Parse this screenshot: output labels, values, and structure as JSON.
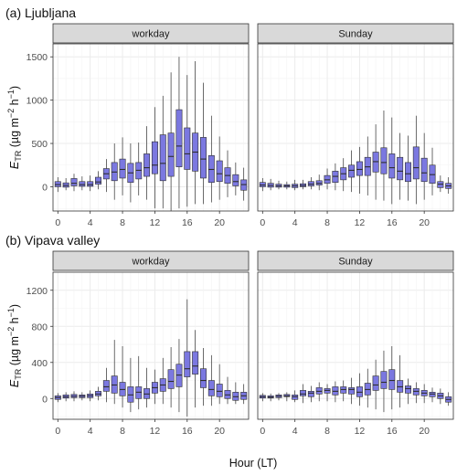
{
  "chart_data": {
    "type": "boxplot",
    "shared": {
      "xlabel": "Hour (LT)",
      "x_ticks": [
        0,
        4,
        8,
        12,
        16,
        20
      ],
      "hours": [
        0,
        1,
        2,
        3,
        4,
        5,
        6,
        7,
        8,
        9,
        10,
        11,
        12,
        13,
        14,
        15,
        16,
        17,
        18,
        19,
        20,
        21,
        22,
        23
      ],
      "box_fill": "#7b78e0",
      "box_stroke": "#2e2e2e",
      "strip_fill": "#d9d9d9",
      "grid_color": "#ebebeb"
    },
    "panels": [
      {
        "title": "(a) Ljubljana",
        "ylabel": {
          "pre": "E",
          "sub": "TR",
          "mid": " (µg m",
          "sup1": "−2",
          "mid2": " h",
          "sup2": "−1",
          "post": ")"
        },
        "ylim": [
          -280,
          1650
        ],
        "y_ticks": [
          0,
          500,
          1000,
          1500
        ],
        "facets": [
          {
            "strip": "workday",
            "boxes": [
              {
                "lo": -60,
                "q1": 0,
                "med": 25,
                "q3": 60,
                "hi": 110
              },
              {
                "lo": -40,
                "q1": -5,
                "med": 15,
                "q3": 45,
                "hi": 100
              },
              {
                "lo": -50,
                "q1": 10,
                "med": 40,
                "q3": 95,
                "hi": 150
              },
              {
                "lo": -40,
                "q1": 5,
                "med": 25,
                "q3": 60,
                "hi": 120
              },
              {
                "lo": -50,
                "q1": 5,
                "med": 25,
                "q3": 60,
                "hi": 130
              },
              {
                "lo": -30,
                "q1": 30,
                "med": 55,
                "q3": 110,
                "hi": 180
              },
              {
                "lo": -60,
                "q1": 90,
                "med": 150,
                "q3": 210,
                "hi": 320
              },
              {
                "lo": -150,
                "q1": 70,
                "med": 170,
                "q3": 280,
                "hi": 500
              },
              {
                "lo": -100,
                "q1": 100,
                "med": 200,
                "q3": 320,
                "hi": 570
              },
              {
                "lo": -180,
                "q1": 50,
                "med": 160,
                "q3": 270,
                "hi": 500
              },
              {
                "lo": -100,
                "q1": 90,
                "med": 190,
                "q3": 280,
                "hi": 510
              },
              {
                "lo": -150,
                "q1": 120,
                "med": 220,
                "q3": 380,
                "hi": 700
              },
              {
                "lo": -250,
                "q1": 150,
                "med": 250,
                "q3": 520,
                "hi": 920
              },
              {
                "lo": -250,
                "q1": 70,
                "med": 270,
                "q3": 600,
                "hi": 1050
              },
              {
                "lo": -280,
                "q1": 120,
                "med": 350,
                "q3": 620,
                "hi": 1320
              },
              {
                "lo": -250,
                "q1": 230,
                "med": 470,
                "q3": 890,
                "hi": 1500
              },
              {
                "lo": -230,
                "q1": 200,
                "med": 380,
                "q3": 680,
                "hi": 1290
              },
              {
                "lo": -200,
                "q1": 180,
                "med": 400,
                "q3": 620,
                "hi": 1450
              },
              {
                "lo": -200,
                "q1": 100,
                "med": 320,
                "q3": 570,
                "hi": 1200
              },
              {
                "lo": -180,
                "q1": 50,
                "med": 200,
                "q3": 360,
                "hi": 820
              },
              {
                "lo": -150,
                "q1": 60,
                "med": 150,
                "q3": 300,
                "hi": 580
              },
              {
                "lo": -120,
                "q1": 40,
                "med": 130,
                "q3": 220,
                "hi": 420
              },
              {
                "lo": -100,
                "q1": 10,
                "med": 60,
                "q3": 140,
                "hi": 280
              },
              {
                "lo": -160,
                "q1": -40,
                "med": 25,
                "q3": 80,
                "hi": 220
              }
            ]
          },
          {
            "strip": "Sunday",
            "boxes": [
              {
                "lo": -50,
                "q1": 0,
                "med": 20,
                "q3": 50,
                "hi": 100
              },
              {
                "lo": -40,
                "q1": -5,
                "med": 15,
                "q3": 40,
                "hi": 90
              },
              {
                "lo": -30,
                "q1": -5,
                "med": 10,
                "q3": 30,
                "hi": 70
              },
              {
                "lo": -30,
                "q1": -5,
                "med": 10,
                "q3": 25,
                "hi": 60
              },
              {
                "lo": -40,
                "q1": -10,
                "med": 10,
                "q3": 30,
                "hi": 80
              },
              {
                "lo": -30,
                "q1": 0,
                "med": 15,
                "q3": 35,
                "hi": 80
              },
              {
                "lo": -30,
                "q1": 10,
                "med": 30,
                "q3": 60,
                "hi": 110
              },
              {
                "lo": -40,
                "q1": 20,
                "med": 40,
                "q3": 70,
                "hi": 140
              },
              {
                "lo": -30,
                "q1": 40,
                "med": 80,
                "q3": 130,
                "hi": 210
              },
              {
                "lo": -40,
                "q1": 50,
                "med": 120,
                "q3": 180,
                "hi": 270
              },
              {
                "lo": -50,
                "q1": 80,
                "med": 150,
                "q3": 220,
                "hi": 330
              },
              {
                "lo": -60,
                "q1": 110,
                "med": 190,
                "q3": 250,
                "hi": 420
              },
              {
                "lo": -80,
                "q1": 130,
                "med": 200,
                "q3": 290,
                "hi": 460
              },
              {
                "lo": -100,
                "q1": 130,
                "med": 230,
                "q3": 340,
                "hi": 580
              },
              {
                "lo": -150,
                "q1": 170,
                "med": 290,
                "q3": 400,
                "hi": 720
              },
              {
                "lo": -160,
                "q1": 150,
                "med": 280,
                "q3": 450,
                "hi": 880
              },
              {
                "lo": -200,
                "q1": 100,
                "med": 220,
                "q3": 380,
                "hi": 800
              },
              {
                "lo": -150,
                "q1": 80,
                "med": 180,
                "q3": 340,
                "hi": 620
              },
              {
                "lo": -160,
                "q1": 60,
                "med": 150,
                "q3": 280,
                "hi": 590
              },
              {
                "lo": -200,
                "q1": 90,
                "med": 220,
                "q3": 460,
                "hi": 820
              },
              {
                "lo": -150,
                "q1": 60,
                "med": 160,
                "q3": 330,
                "hi": 620
              },
              {
                "lo": -100,
                "q1": 40,
                "med": 140,
                "q3": 250,
                "hi": 450
              },
              {
                "lo": -60,
                "q1": -10,
                "med": 30,
                "q3": 60,
                "hi": 130
              },
              {
                "lo": -80,
                "q1": -20,
                "med": 10,
                "q3": 40,
                "hi": 110
              }
            ]
          }
        ]
      },
      {
        "title": "(b) Vipava valley",
        "ylabel": {
          "pre": "E",
          "sub": "TR",
          "mid": " (µg m",
          "sup1": "−2",
          "mid2": " h",
          "sup2": "−1",
          "post": ")"
        },
        "ylim": [
          -230,
          1400
        ],
        "y_ticks": [
          0,
          400,
          800,
          1200
        ],
        "facets": [
          {
            "strip": "workday",
            "boxes": [
              {
                "lo": -40,
                "q1": -10,
                "med": 10,
                "q3": 30,
                "hi": 60
              },
              {
                "lo": -30,
                "q1": 5,
                "med": 20,
                "q3": 40,
                "hi": 70
              },
              {
                "lo": -30,
                "q1": 10,
                "med": 25,
                "q3": 45,
                "hi": 80
              },
              {
                "lo": -20,
                "q1": 10,
                "med": 25,
                "q3": 40,
                "hi": 70
              },
              {
                "lo": -30,
                "q1": 10,
                "med": 30,
                "q3": 50,
                "hi": 90
              },
              {
                "lo": -20,
                "q1": 30,
                "med": 50,
                "q3": 80,
                "hi": 130
              },
              {
                "lo": -40,
                "q1": 80,
                "med": 130,
                "q3": 200,
                "hi": 340
              },
              {
                "lo": -60,
                "q1": 60,
                "med": 150,
                "q3": 250,
                "hi": 650
              },
              {
                "lo": -100,
                "q1": 30,
                "med": 100,
                "q3": 180,
                "hi": 580
              },
              {
                "lo": -150,
                "q1": -40,
                "med": 40,
                "q3": 130,
                "hi": 450
              },
              {
                "lo": -120,
                "q1": 0,
                "med": 70,
                "q3": 130,
                "hi": 470
              },
              {
                "lo": -100,
                "q1": 0,
                "med": 50,
                "q3": 110,
                "hi": 340
              },
              {
                "lo": -60,
                "q1": 60,
                "med": 120,
                "q3": 180,
                "hi": 320
              },
              {
                "lo": -60,
                "q1": 80,
                "med": 150,
                "q3": 220,
                "hi": 450
              },
              {
                "lo": -100,
                "q1": 110,
                "med": 190,
                "q3": 320,
                "hi": 570
              },
              {
                "lo": -150,
                "q1": 130,
                "med": 260,
                "q3": 380,
                "hi": 660
              },
              {
                "lo": -200,
                "q1": 240,
                "med": 330,
                "q3": 520,
                "hi": 1100
              },
              {
                "lo": -100,
                "q1": 270,
                "med": 360,
                "q3": 520,
                "hi": 760
              },
              {
                "lo": -80,
                "q1": 120,
                "med": 200,
                "q3": 330,
                "hi": 560
              },
              {
                "lo": -80,
                "q1": 30,
                "med": 100,
                "q3": 200,
                "hi": 480
              },
              {
                "lo": -60,
                "q1": 20,
                "med": 80,
                "q3": 160,
                "hi": 380
              },
              {
                "lo": -60,
                "q1": 0,
                "med": 40,
                "q3": 90,
                "hi": 240
              },
              {
                "lo": -60,
                "q1": -20,
                "med": 20,
                "q3": 70,
                "hi": 180
              },
              {
                "lo": -60,
                "q1": -10,
                "med": 30,
                "q3": 70,
                "hi": 160
              }
            ]
          },
          {
            "strip": "Sunday",
            "boxes": [
              {
                "lo": -30,
                "q1": 5,
                "med": 20,
                "q3": 35,
                "hi": 60
              },
              {
                "lo": -30,
                "q1": 5,
                "med": 15,
                "q3": 30,
                "hi": 55
              },
              {
                "lo": -20,
                "q1": 10,
                "med": 25,
                "q3": 40,
                "hi": 60
              },
              {
                "lo": -30,
                "q1": 20,
                "med": 30,
                "q3": 45,
                "hi": 70
              },
              {
                "lo": -40,
                "q1": -10,
                "med": 20,
                "q3": 40,
                "hi": 90
              },
              {
                "lo": -50,
                "q1": 30,
                "med": 50,
                "q3": 90,
                "hi": 160
              },
              {
                "lo": -40,
                "q1": 20,
                "med": 60,
                "q3": 80,
                "hi": 140
              },
              {
                "lo": -30,
                "q1": 50,
                "med": 80,
                "q3": 120,
                "hi": 180
              },
              {
                "lo": -30,
                "q1": 60,
                "med": 90,
                "q3": 110,
                "hi": 160
              },
              {
                "lo": -40,
                "q1": 40,
                "med": 80,
                "q3": 130,
                "hi": 190
              },
              {
                "lo": -30,
                "q1": 60,
                "med": 100,
                "q3": 130,
                "hi": 200
              },
              {
                "lo": -60,
                "q1": 50,
                "med": 100,
                "q3": 120,
                "hi": 230
              },
              {
                "lo": -80,
                "q1": 20,
                "med": 70,
                "q3": 130,
                "hi": 280
              },
              {
                "lo": -100,
                "q1": 40,
                "med": 100,
                "q3": 170,
                "hi": 330
              },
              {
                "lo": -120,
                "q1": 90,
                "med": 150,
                "q3": 250,
                "hi": 430
              },
              {
                "lo": -150,
                "q1": 110,
                "med": 180,
                "q3": 300,
                "hi": 530
              },
              {
                "lo": -120,
                "q1": 100,
                "med": 200,
                "q3": 320,
                "hi": 580
              },
              {
                "lo": -100,
                "q1": 70,
                "med": 130,
                "q3": 200,
                "hi": 480
              },
              {
                "lo": -60,
                "q1": 60,
                "med": 110,
                "q3": 140,
                "hi": 220
              },
              {
                "lo": -50,
                "q1": 40,
                "med": 80,
                "q3": 110,
                "hi": 180
              },
              {
                "lo": -50,
                "q1": 30,
                "med": 60,
                "q3": 90,
                "hi": 160
              },
              {
                "lo": -40,
                "q1": 20,
                "med": 50,
                "q3": 70,
                "hi": 120
              },
              {
                "lo": -60,
                "q1": 0,
                "med": 30,
                "q3": 60,
                "hi": 110
              },
              {
                "lo": -80,
                "q1": -40,
                "med": -10,
                "q3": 20,
                "hi": 70
              }
            ]
          }
        ]
      }
    ]
  }
}
